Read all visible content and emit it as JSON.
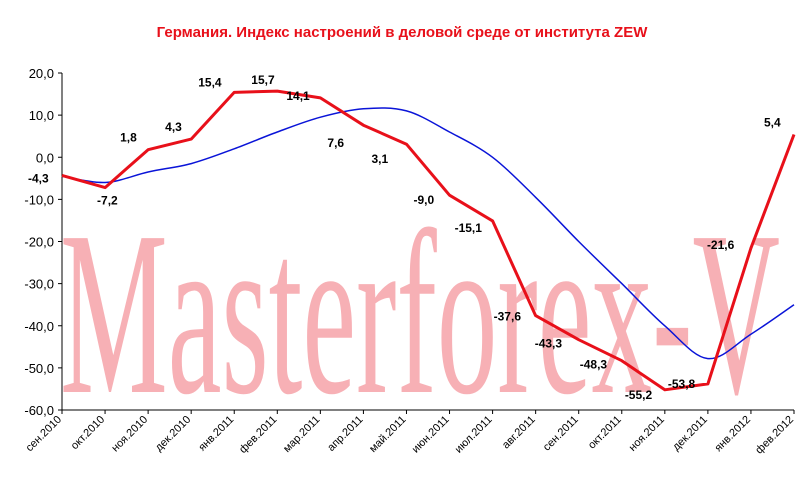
{
  "chart_data": {
    "type": "line",
    "title": "Германия. Индекс настроений в деловой среде от института ZEW",
    "watermark": "Masterforex-V",
    "categories": [
      "сен.2010",
      "окт.2010",
      "ноя.2010",
      "дек.2010",
      "янв.2011",
      "фев.2011",
      "мар.2011",
      "апр.2011",
      "май.2011",
      "июн.2011",
      "июл.2011",
      "авг.2011",
      "сен.2011",
      "окт.2011",
      "ноя.2011",
      "дек.2011",
      "янв.2012",
      "фев.2012"
    ],
    "ylim": [
      -60,
      20
    ],
    "yticks": [
      "20,0",
      "10,0",
      "0,0",
      "-10,0",
      "-20,0",
      "-30,0",
      "-40,0",
      "-50,0",
      "-60,0"
    ],
    "grid": false,
    "series": [
      {
        "color": "#e8101a",
        "values": [
          -4.3,
          -7.2,
          1.8,
          4.3,
          15.4,
          15.7,
          14.1,
          7.6,
          3.1,
          -9.0,
          -15.1,
          -37.6,
          -43.3,
          -48.3,
          -55.2,
          -53.8,
          -21.6,
          5.4
        ],
        "labels": [
          "-4,3",
          "-7,2",
          "1,8",
          "4,3",
          "15,4",
          "15,7",
          "14,1",
          "7,6",
          "3,1",
          "-9,0",
          "-15,1",
          "-37,6",
          "-43,3",
          "-48,3",
          "-55,2",
          "-53,8",
          "-21,6",
          "5,4"
        ]
      },
      {
        "color": "#0a14d8",
        "values": [
          -4.5,
          -6.0,
          -3.5,
          -1.5,
          2.0,
          6.0,
          9.5,
          11.5,
          11.0,
          6.0,
          0.0,
          -9.5,
          -20.0,
          -30.0,
          -40.0,
          -47.8,
          -42.0,
          -35.0
        ]
      }
    ]
  }
}
